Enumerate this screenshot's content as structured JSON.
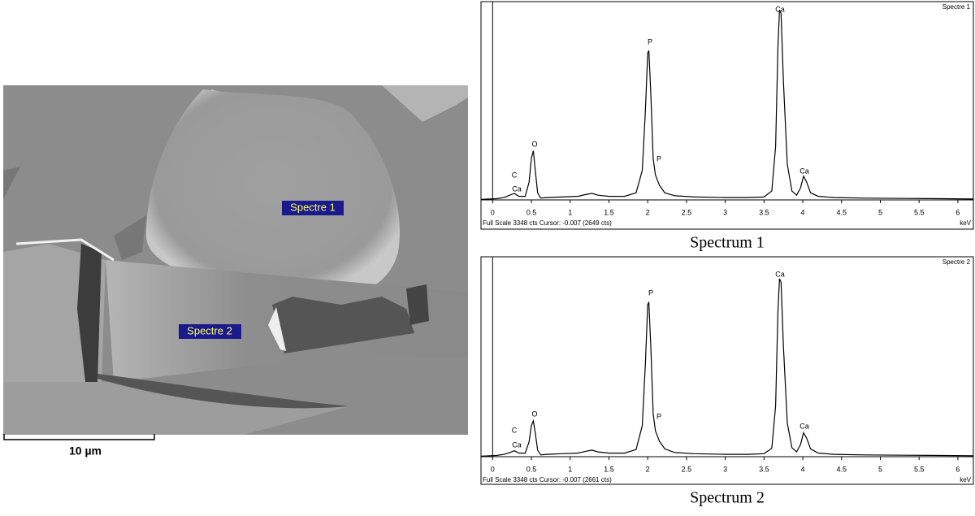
{
  "image": {
    "labels": [
      "Spectre  1",
      "Spectre  2"
    ],
    "scale_bar": "10 µm"
  },
  "chart_data": [
    {
      "type": "line",
      "title": "Spectre 1",
      "caption": "Spectrum 1",
      "footer": "Full Scale 3348 cts Cursor: -0.007  (2649 cts)",
      "x_label": "keV",
      "x": [
        -0.15,
        0.05,
        0.15,
        0.22,
        0.28,
        0.34,
        0.42,
        0.47,
        0.5,
        0.525,
        0.55,
        0.58,
        0.62,
        0.7,
        0.9,
        1.1,
        1.2,
        1.28,
        1.36,
        1.5,
        1.7,
        1.85,
        1.93,
        1.97,
        2.0,
        2.015,
        2.04,
        2.07,
        2.1,
        2.15,
        2.22,
        2.35,
        2.6,
        3.0,
        3.3,
        3.5,
        3.6,
        3.65,
        3.68,
        3.7,
        3.72,
        3.75,
        3.8,
        3.86,
        3.92,
        3.97,
        4.01,
        4.05,
        4.1,
        4.2,
        4.4,
        4.8,
        5.3,
        5.8,
        6.2
      ],
      "series": [
        {
          "color": "#000000",
          "values": [
            10,
            20,
            40,
            80,
            110,
            60,
            60,
            300,
            700,
            830,
            500,
            120,
            30,
            40,
            50,
            60,
            90,
            110,
            80,
            60,
            60,
            120,
            500,
            1500,
            2480,
            2520,
            1800,
            700,
            420,
            250,
            120,
            70,
            50,
            40,
            40,
            50,
            150,
            900,
            2600,
            3210,
            3150,
            2000,
            600,
            150,
            80,
            200,
            400,
            300,
            120,
            60,
            40,
            30,
            25,
            20,
            15
          ]
        }
      ],
      "annotations": [
        "C",
        "Ca",
        "O",
        "P",
        "P",
        "Ca",
        "Ca"
      ],
      "xlim": [
        -0.15,
        6.2
      ],
      "ylim": [
        0,
        3348
      ],
      "xticks": [
        0,
        0.5,
        1,
        1.5,
        2,
        2.5,
        3,
        3.5,
        4,
        4.5,
        5,
        5.5,
        6
      ]
    },
    {
      "type": "line",
      "title": "Spectre 2",
      "caption": "Spectrum 2",
      "footer": "Full Scale 3348 cts Cursor: -0.007  (2661 cts)",
      "x_label": "keV",
      "x": [
        -0.15,
        0.05,
        0.15,
        0.22,
        0.28,
        0.34,
        0.42,
        0.47,
        0.5,
        0.525,
        0.55,
        0.58,
        0.62,
        0.7,
        0.9,
        1.1,
        1.2,
        1.28,
        1.36,
        1.5,
        1.7,
        1.85,
        1.93,
        1.97,
        2.0,
        2.015,
        2.04,
        2.07,
        2.1,
        2.15,
        2.22,
        2.35,
        2.6,
        3.0,
        3.3,
        3.5,
        3.6,
        3.65,
        3.68,
        3.7,
        3.72,
        3.75,
        3.8,
        3.86,
        3.92,
        3.97,
        4.01,
        4.05,
        4.1,
        4.2,
        4.4,
        4.8,
        5.3,
        5.8,
        6.2
      ],
      "series": [
        {
          "color": "#000000",
          "values": [
            10,
            20,
            40,
            70,
            100,
            60,
            60,
            250,
            520,
            600,
            400,
            110,
            30,
            40,
            50,
            60,
            90,
            110,
            80,
            60,
            60,
            120,
            520,
            1550,
            2550,
            2580,
            1850,
            720,
            430,
            260,
            130,
            70,
            50,
            40,
            40,
            50,
            140,
            850,
            2450,
            2980,
            2920,
            1850,
            560,
            150,
            80,
            200,
            400,
            310,
            130,
            60,
            40,
            30,
            25,
            20,
            15
          ]
        }
      ],
      "annotations": [
        "C",
        "Ca",
        "O",
        "P",
        "P",
        "Ca",
        "Ca"
      ],
      "xlim": [
        -0.15,
        6.2
      ],
      "ylim": [
        0,
        3348
      ],
      "xticks": [
        0,
        0.5,
        1,
        1.5,
        2,
        2.5,
        3,
        3.5,
        4,
        4.5,
        5,
        5.5,
        6
      ]
    }
  ]
}
